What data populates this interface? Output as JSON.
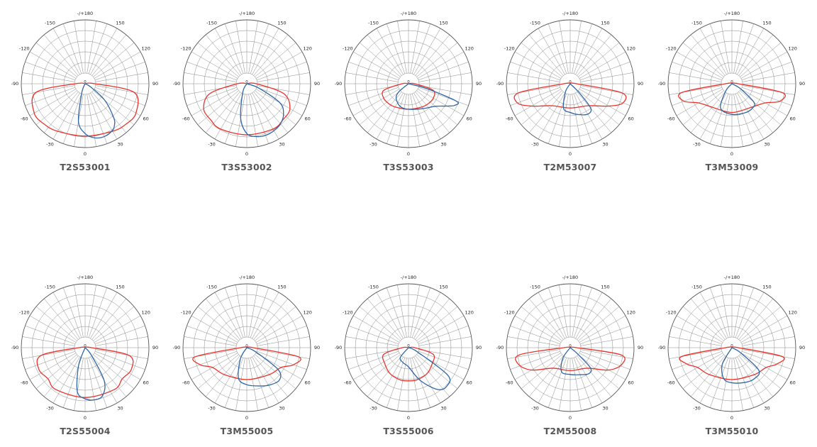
{
  "chart_data": [
    {
      "type": "polar",
      "title": "T2S53001",
      "angle_labels": [
        "-/+180",
        "150",
        "120",
        "90",
        "60",
        "30",
        "0",
        "-30",
        "-60",
        "-90",
        "-120",
        "-150"
      ],
      "series": [
        {
          "color": "#e8322b",
          "theta": [
            -90,
            -80,
            -60,
            -45,
            -30,
            0,
            30,
            45,
            60,
            80,
            90
          ],
          "r": [
            0.15,
            0.78,
            0.92,
            0.9,
            0.86,
            0.82,
            0.86,
            0.9,
            0.92,
            0.78,
            0.15
          ]
        },
        {
          "color": "#2f66a8",
          "theta": [
            -20,
            -10,
            0,
            10,
            20,
            30,
            35,
            40,
            50,
            60
          ],
          "r": [
            0.15,
            0.6,
            0.78,
            0.86,
            0.88,
            0.85,
            0.8,
            0.7,
            0.4,
            0.1
          ]
        }
      ]
    },
    {
      "type": "polar",
      "title": "T3S53002",
      "angle_labels": [
        "-/+180",
        "150",
        "120",
        "90",
        "60",
        "30",
        "0",
        "-30",
        "-60",
        "-90",
        "-120",
        "-150"
      ],
      "series": [
        {
          "color": "#e8322b",
          "theta": [
            -90,
            -75,
            -60,
            -45,
            -30,
            0,
            30,
            45,
            60,
            75,
            90
          ],
          "r": [
            0.15,
            0.6,
            0.78,
            0.8,
            0.82,
            0.8,
            0.82,
            0.8,
            0.78,
            0.6,
            0.15
          ]
        },
        {
          "color": "#2f66a8",
          "theta": [
            -25,
            -10,
            0,
            10,
            20,
            30,
            40,
            50,
            60,
            70
          ],
          "r": [
            0.15,
            0.55,
            0.78,
            0.84,
            0.86,
            0.85,
            0.82,
            0.75,
            0.6,
            0.2
          ]
        }
      ]
    },
    {
      "type": "polar",
      "title": "T3S53003",
      "angle_labels": [
        "-/+180",
        "150",
        "120",
        "90",
        "60",
        "30",
        "0",
        "-30",
        "-60",
        "-90",
        "-120",
        "-150"
      ],
      "series": [
        {
          "color": "#e8322b",
          "theta": [
            -90,
            -75,
            -60,
            -45,
            -30,
            0,
            30,
            45,
            60,
            75,
            90
          ],
          "r": [
            0.1,
            0.4,
            0.45,
            0.44,
            0.42,
            0.4,
            0.42,
            0.44,
            0.45,
            0.4,
            0.1
          ]
        },
        {
          "color": "#2f66a8",
          "theta": [
            -50,
            -40,
            -20,
            0,
            30,
            50,
            60,
            65,
            70,
            75
          ],
          "r": [
            0.2,
            0.3,
            0.38,
            0.4,
            0.45,
            0.55,
            0.7,
            0.8,
            0.8,
            0.3
          ]
        }
      ]
    },
    {
      "type": "polar",
      "title": "T2M53007",
      "angle_labels": [
        "-/+180",
        "150",
        "120",
        "90",
        "60",
        "30",
        "0",
        "-30",
        "-60",
        "-90",
        "-120",
        "-150"
      ],
      "series": [
        {
          "color": "#e8322b",
          "theta": [
            -90,
            -80,
            -70,
            -60,
            -40,
            0,
            40,
            60,
            70,
            80,
            90
          ],
          "r": [
            0.1,
            0.82,
            0.88,
            0.7,
            0.45,
            0.38,
            0.45,
            0.7,
            0.88,
            0.82,
            0.1
          ]
        },
        {
          "color": "#2f66a8",
          "theta": [
            -30,
            -15,
            0,
            15,
            30,
            40,
            45
          ],
          "r": [
            0.15,
            0.4,
            0.45,
            0.5,
            0.55,
            0.5,
            0.2
          ]
        }
      ]
    },
    {
      "type": "polar",
      "title": "T3M53009",
      "angle_labels": [
        "-/+180",
        "150",
        "120",
        "90",
        "60",
        "30",
        "0",
        "-30",
        "-60",
        "-90",
        "-120",
        "-150"
      ],
      "series": [
        {
          "color": "#e8322b",
          "theta": [
            -90,
            -80,
            -70,
            -60,
            -40,
            0,
            40,
            60,
            70,
            80,
            90
          ],
          "r": [
            0.1,
            0.8,
            0.8,
            0.6,
            0.48,
            0.45,
            0.48,
            0.6,
            0.8,
            0.8,
            0.1
          ]
        },
        {
          "color": "#2f66a8",
          "theta": [
            -40,
            -25,
            0,
            25,
            40,
            50,
            60
          ],
          "r": [
            0.15,
            0.42,
            0.48,
            0.5,
            0.5,
            0.45,
            0.15
          ]
        }
      ]
    },
    {
      "type": "polar",
      "title": "T2S55004",
      "angle_labels": [
        "-/+180",
        "150",
        "120",
        "90",
        "60",
        "30",
        "0",
        "-30",
        "-60",
        "-90",
        "-120",
        "-150"
      ],
      "series": [
        {
          "color": "#e8322b",
          "theta": [
            -90,
            -80,
            -65,
            -50,
            -35,
            0,
            35,
            50,
            65,
            80,
            90
          ],
          "r": [
            0.1,
            0.7,
            0.8,
            0.76,
            0.8,
            0.78,
            0.8,
            0.76,
            0.8,
            0.7,
            0.1
          ]
        },
        {
          "color": "#2f66a8",
          "theta": [
            -20,
            -10,
            0,
            10,
            20,
            30,
            40
          ],
          "r": [
            0.3,
            0.7,
            0.8,
            0.83,
            0.8,
            0.6,
            0.15
          ]
        }
      ]
    },
    {
      "type": "polar",
      "title": "T3M55005",
      "angle_labels": [
        "-/+180",
        "150",
        "120",
        "90",
        "60",
        "30",
        "0",
        "-30",
        "-60",
        "-90",
        "-120",
        "-150"
      ],
      "series": [
        {
          "color": "#e8322b",
          "theta": [
            -90,
            -80,
            -70,
            -60,
            -40,
            0,
            40,
            60,
            70,
            80,
            90
          ],
          "r": [
            0.1,
            0.82,
            0.78,
            0.62,
            0.55,
            0.5,
            0.55,
            0.62,
            0.78,
            0.82,
            0.1
          ]
        },
        {
          "color": "#2f66a8",
          "theta": [
            -30,
            -15,
            0,
            15,
            30,
            45,
            55,
            65
          ],
          "r": [
            0.2,
            0.5,
            0.58,
            0.62,
            0.68,
            0.72,
            0.6,
            0.15
          ]
        }
      ]
    },
    {
      "type": "polar",
      "title": "T3S55006",
      "angle_labels": [
        "-/+180",
        "150",
        "120",
        "90",
        "60",
        "30",
        "0",
        "-30",
        "-60",
        "-90",
        "-120",
        "-150"
      ],
      "series": [
        {
          "color": "#e8322b",
          "theta": [
            -90,
            -75,
            -55,
            -35,
            -15,
            0,
            15,
            35,
            55,
            75,
            90
          ],
          "r": [
            0.1,
            0.4,
            0.45,
            0.5,
            0.52,
            0.52,
            0.52,
            0.5,
            0.45,
            0.4,
            0.1
          ]
        },
        {
          "color": "#2f66a8",
          "theta": [
            -40,
            -20,
            0,
            20,
            35,
            45,
            55,
            65
          ],
          "r": [
            0.2,
            0.25,
            0.3,
            0.55,
            0.8,
            0.85,
            0.75,
            0.15
          ]
        }
      ]
    },
    {
      "type": "polar",
      "title": "T2M55008",
      "angle_labels": [
        "-/+180",
        "150",
        "120",
        "90",
        "60",
        "30",
        "0",
        "-30",
        "-60",
        "-90",
        "-120",
        "-150"
      ],
      "series": [
        {
          "color": "#e8322b",
          "theta": [
            -90,
            -82,
            -72,
            -60,
            -40,
            0,
            40,
            60,
            72,
            82,
            90
          ],
          "r": [
            0.1,
            0.8,
            0.85,
            0.7,
            0.42,
            0.36,
            0.42,
            0.7,
            0.85,
            0.8,
            0.1
          ]
        },
        {
          "color": "#2f66a8",
          "theta": [
            -35,
            -20,
            0,
            20,
            35,
            45,
            50
          ],
          "r": [
            0.2,
            0.4,
            0.42,
            0.45,
            0.5,
            0.45,
            0.15
          ]
        }
      ]
    },
    {
      "type": "polar",
      "title": "T3M55010",
      "angle_labels": [
        "-/+180",
        "150",
        "120",
        "90",
        "60",
        "30",
        "0",
        "-30",
        "-60",
        "-90",
        "-120",
        "-150"
      ],
      "series": [
        {
          "color": "#e8322b",
          "theta": [
            -90,
            -80,
            -70,
            -60,
            -40,
            0,
            40,
            60,
            70,
            80,
            90
          ],
          "r": [
            0.1,
            0.8,
            0.75,
            0.62,
            0.55,
            0.5,
            0.55,
            0.62,
            0.75,
            0.8,
            0.1
          ]
        },
        {
          "color": "#2f66a8",
          "theta": [
            -30,
            -15,
            0,
            20,
            35,
            50,
            60
          ],
          "r": [
            0.3,
            0.5,
            0.55,
            0.58,
            0.6,
            0.55,
            0.15
          ]
        }
      ]
    }
  ]
}
